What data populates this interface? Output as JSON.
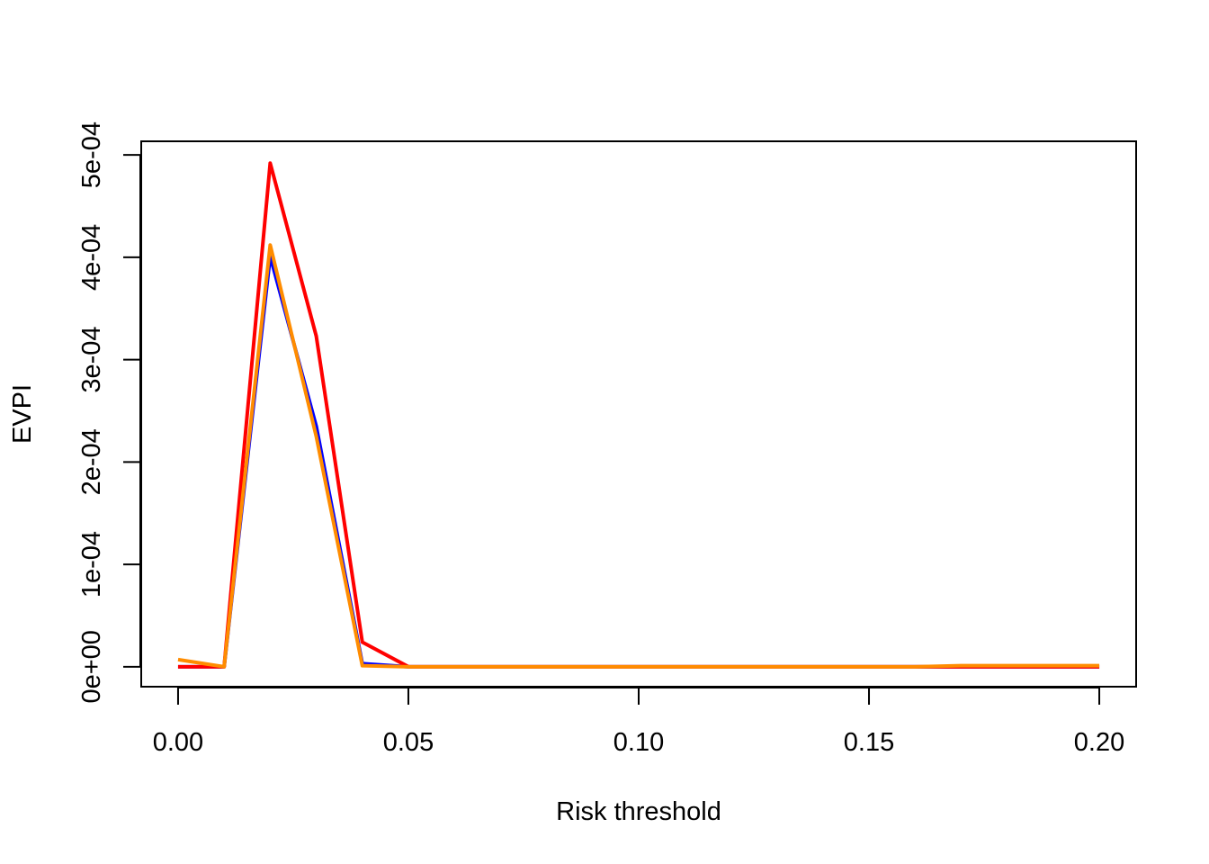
{
  "chart_data": {
    "type": "line",
    "title": "",
    "xlabel": "Risk threshold",
    "ylabel": "EVPI",
    "xlim": [
      -0.008,
      0.208
    ],
    "ylim": [
      -1.95e-05,
      0.0005133
    ],
    "x_ticks": [
      0.0,
      0.05,
      0.1,
      0.15,
      0.2
    ],
    "x_tick_labels": [
      "0.00",
      "0.05",
      "0.10",
      "0.15",
      "0.20"
    ],
    "y_ticks": [
      0,
      0.0001,
      0.0002,
      0.0003,
      0.0004,
      0.0005
    ],
    "y_tick_labels": [
      "0e+00",
      "1e-04",
      "2e-04",
      "3e-04",
      "4e-04",
      "5e-04"
    ],
    "grid": false,
    "x": [
      0.0,
      0.01,
      0.02,
      0.03,
      0.04,
      0.05,
      0.06,
      0.07,
      0.08,
      0.09,
      0.1,
      0.11,
      0.12,
      0.13,
      0.14,
      0.15,
      0.16,
      0.17,
      0.18,
      0.19,
      0.2
    ],
    "series": [
      {
        "color": "#0000ff",
        "values": [
          0,
          0,
          0.000401,
          0.000235,
          3e-06,
          0,
          0,
          0,
          0,
          0,
          0,
          0,
          0,
          0,
          0,
          0,
          0,
          0,
          0,
          0,
          0
        ]
      },
      {
        "color": "#ff0000",
        "values": [
          0,
          0,
          0.000492,
          0.000323,
          2.4e-05,
          0,
          0,
          0,
          0,
          0,
          0,
          0,
          0,
          0,
          0,
          0,
          0,
          0,
          0,
          0,
          0
        ]
      },
      {
        "color": "#ff8c00",
        "values": [
          7e-06,
          0,
          0.000412,
          0.000225,
          1e-06,
          0,
          0,
          0,
          0,
          0,
          0,
          0,
          0,
          0,
          0,
          0,
          0,
          1e-06,
          1e-06,
          1e-06,
          1e-06
        ]
      }
    ]
  }
}
